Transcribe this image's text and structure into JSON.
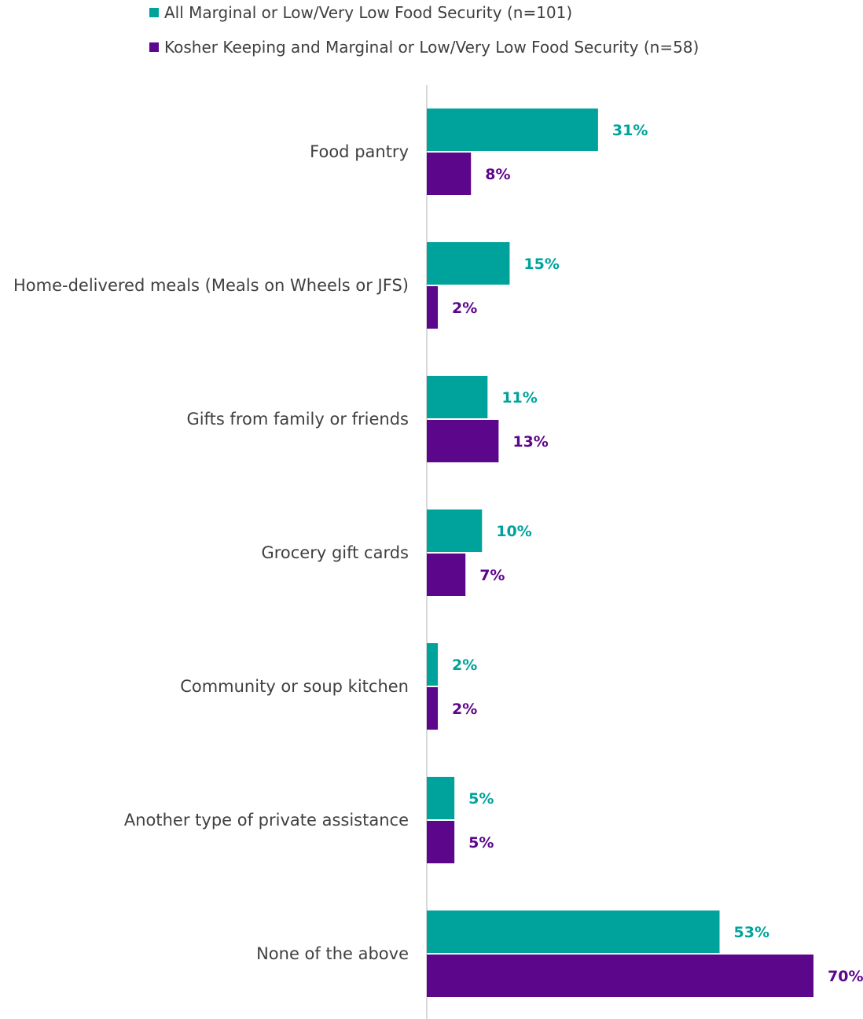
{
  "chart_data": {
    "type": "bar",
    "orientation": "horizontal",
    "title": "",
    "xlabel": "",
    "ylabel": "",
    "categories": [
      "Food pantry",
      "Home-delivered meals (Meals on Wheels or JFS)",
      "Gifts from family or friends",
      "Grocery gift cards",
      "Community or soup kitchen",
      "Another type of private assistance",
      "None of the above"
    ],
    "series": [
      {
        "name": "All Marginal or Low/Very Low Food Security (n=101)",
        "color": "#00a39b",
        "values": [
          31,
          15,
          11,
          10,
          2,
          5,
          53
        ],
        "labels": [
          "31%",
          "15%",
          "11%",
          "10%",
          "2%",
          "5%",
          "53%"
        ]
      },
      {
        "name": "Kosher Keeping and Marginal or Low/Very Low Food Security (n=58)",
        "color": "#5c068c",
        "values": [
          8,
          2,
          13,
          7,
          2,
          5,
          70
        ],
        "labels": [
          "8%",
          "2%",
          "13%",
          "7%",
          "2%",
          "5%",
          "70%"
        ]
      }
    ],
    "xlim": [
      0,
      70
    ],
    "grid": false,
    "legend_position": "top"
  }
}
